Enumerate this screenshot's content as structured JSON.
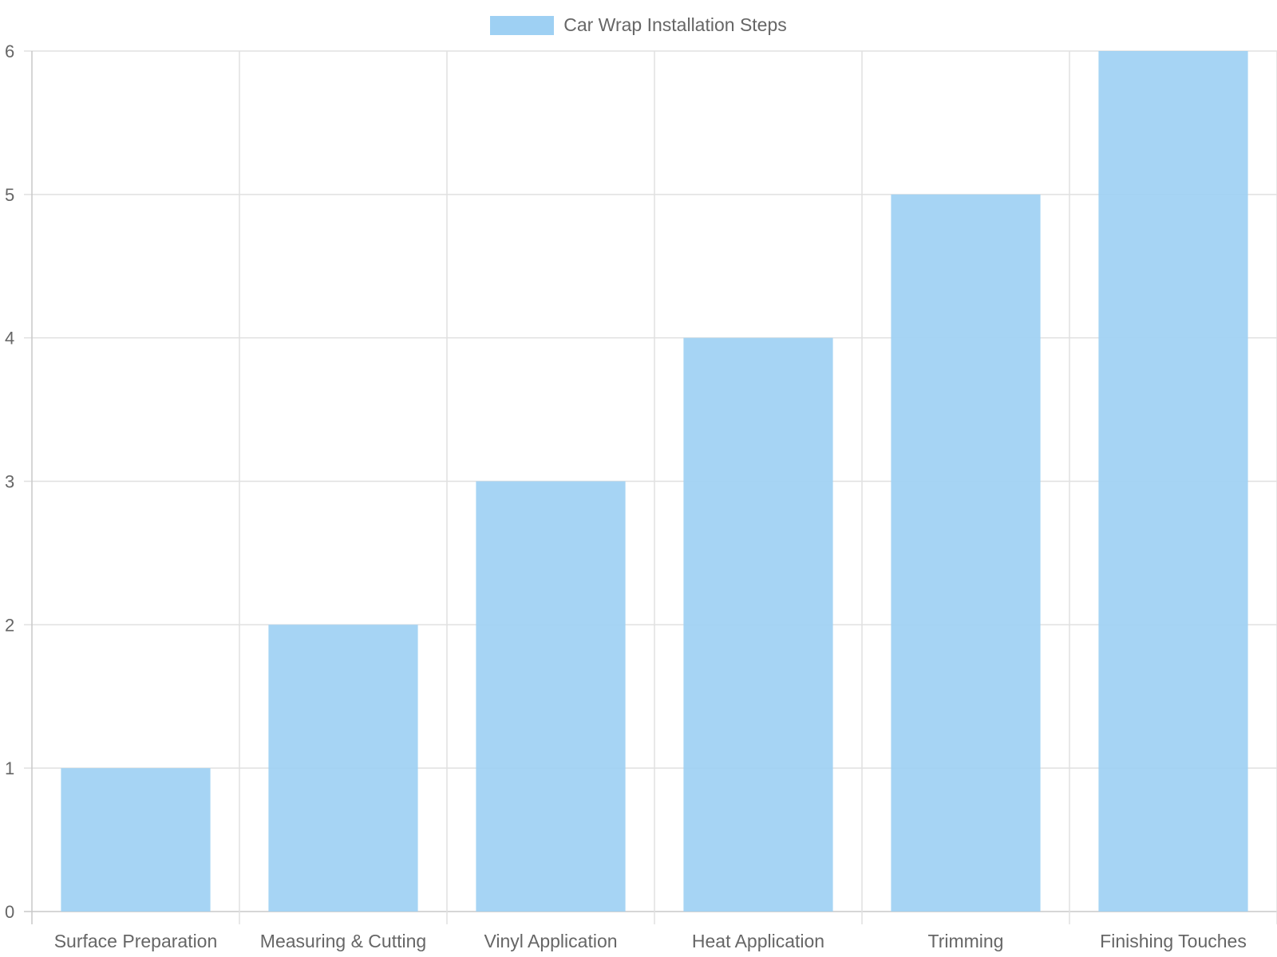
{
  "chart_data": {
    "type": "bar",
    "categories": [
      "Surface Preparation",
      "Measuring & Cutting",
      "Vinyl Application",
      "Heat Application",
      "Trimming",
      "Finishing Touches"
    ],
    "series": [
      {
        "name": "Car Wrap Installation Steps",
        "values": [
          1,
          2,
          3,
          4,
          5,
          6
        ],
        "color": "#9ed0f3"
      }
    ],
    "ylim": [
      0,
      6
    ],
    "yticks": [
      0,
      1,
      2,
      3,
      4,
      5,
      6
    ],
    "grid": true,
    "legend_position": "top-center",
    "colors": {
      "grid": "#e0e0e0",
      "axis": "#c8c8c8",
      "text": "#666666"
    }
  }
}
